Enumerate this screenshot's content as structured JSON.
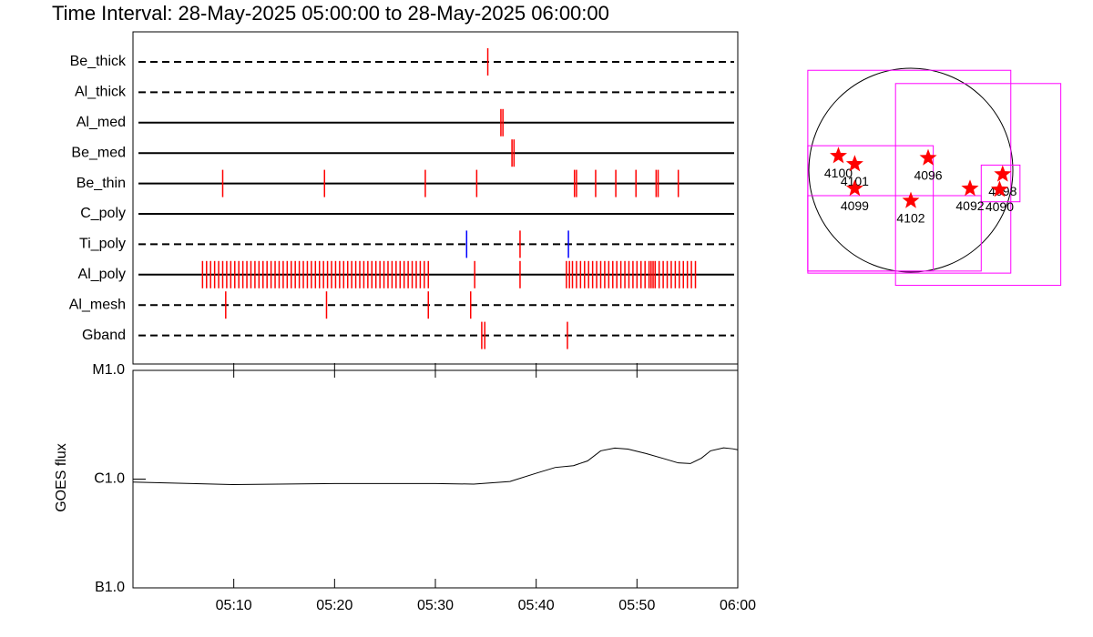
{
  "chart_data": [
    {
      "type": "event",
      "title": "Time Interval: 28-May-2025 05:00:00 to 28-May-2025 06:00:00",
      "xlim": [
        0,
        60
      ],
      "series": [
        {
          "name": "Be_thick",
          "line_style": "dashed",
          "color": "#ff0000",
          "values": [
            35.2
          ]
        },
        {
          "name": "Al_thick",
          "line_style": "dashed",
          "color": "#ff0000",
          "values": []
        },
        {
          "name": "Al_med",
          "line_style": "solid",
          "color": "#ff0000",
          "values": [
            36.5,
            36.7
          ]
        },
        {
          "name": "Be_med",
          "line_style": "solid",
          "color": "#ff0000",
          "values": [
            37.6,
            37.8
          ]
        },
        {
          "name": "Be_thin",
          "line_style": "solid",
          "color": "#ff0000",
          "values": [
            8.9,
            19.0,
            29.0,
            34.1,
            43.8,
            44.0,
            45.9,
            47.9,
            49.9,
            51.9,
            52.1,
            54.1
          ]
        },
        {
          "name": "C_poly",
          "line_style": "solid",
          "color": "#ff0000",
          "values": []
        },
        {
          "name": "Ti_poly",
          "line_style": "dashed",
          "color": "#ff0000",
          "colors": [
            "#0000ff",
            "#ff0000",
            "#0000ff"
          ],
          "values": [
            33.1,
            38.4,
            43.2
          ]
        },
        {
          "name": "Al_poly",
          "line_style": "solid",
          "color": "#ff0000",
          "values": [
            6.9,
            7.3,
            7.7,
            8.1,
            8.5,
            8.9,
            9.3,
            9.7,
            10.1,
            10.5,
            10.9,
            11.3,
            11.7,
            12.1,
            12.5,
            12.9,
            13.3,
            13.7,
            14.1,
            14.5,
            14.9,
            15.3,
            15.7,
            16.1,
            16.5,
            16.9,
            17.3,
            17.7,
            18.1,
            18.5,
            18.9,
            19.3,
            19.7,
            20.1,
            20.5,
            20.9,
            21.3,
            21.7,
            22.1,
            22.5,
            22.9,
            23.3,
            23.7,
            24.1,
            24.5,
            24.9,
            25.3,
            25.7,
            26.1,
            26.5,
            26.9,
            27.3,
            27.7,
            28.1,
            28.5,
            28.9,
            29.3,
            33.9,
            38.4,
            43.0,
            43.3,
            43.6,
            44.0,
            44.4,
            44.8,
            45.2,
            45.6,
            46.0,
            46.4,
            46.8,
            47.2,
            47.6,
            48.0,
            48.4,
            48.8,
            49.2,
            49.6,
            50.0,
            50.4,
            50.8,
            51.2,
            51.4,
            51.6,
            51.8,
            52.2,
            52.6,
            53.0,
            53.4,
            53.8,
            54.2,
            54.6,
            55.0,
            55.4,
            55.8
          ]
        },
        {
          "name": "Al_mesh",
          "line_style": "dashed",
          "color": "#ff0000",
          "values": [
            9.2,
            19.2,
            29.3,
            33.5
          ]
        },
        {
          "name": "Gband",
          "line_style": "dashed",
          "color": "#ff0000",
          "values": [
            34.6,
            34.9,
            43.1
          ]
        }
      ]
    },
    {
      "type": "line",
      "y_label": "GOES flux",
      "log_scale": true,
      "xlim": [
        0,
        60
      ],
      "xticks": [
        {
          "value": 10,
          "label": "05:10"
        },
        {
          "value": 20,
          "label": "05:20"
        },
        {
          "value": 30,
          "label": "05:30"
        },
        {
          "value": 40,
          "label": "05:40"
        },
        {
          "value": 50,
          "label": "05:50"
        },
        {
          "value": 60,
          "label": "06:00"
        }
      ],
      "ylim": [
        1e-07,
        1e-05
      ],
      "yticks": [
        {
          "value": 1e-07,
          "label": "B1.0"
        },
        {
          "value": 1e-06,
          "label": "C1.0"
        },
        {
          "value": 1e-05,
          "label": "M1.0"
        }
      ],
      "color": "#000000",
      "x": [
        0,
        10,
        20,
        30,
        33.8,
        37.4,
        40.1,
        41.9,
        43.7,
        45.1,
        46.4,
        47.8,
        49.1,
        50.9,
        52.8,
        54.1,
        55.3,
        56.4,
        57.3,
        58.6,
        59.5,
        60
      ],
      "values": [
        9.4e-07,
        8.9e-07,
        9.1e-07,
        9.1e-07,
        9e-07,
        9.5e-07,
        1.14e-06,
        1.28e-06,
        1.33e-06,
        1.47e-06,
        1.82e-06,
        1.93e-06,
        1.89e-06,
        1.72e-06,
        1.53e-06,
        1.41e-06,
        1.39e-06,
        1.56e-06,
        1.82e-06,
        1.94e-06,
        1.9e-06,
        1.86e-06
      ]
    },
    {
      "type": "map",
      "box_color": "#ff00ff",
      "point_color": "#ff0000",
      "boxes": [
        [
          -1.01,
          -1.01,
          0.98,
          0.98
        ],
        [
          -0.15,
          -1.13,
          1.47,
          0.85
        ],
        [
          0.69,
          -0.31,
          1.07,
          0.05
        ],
        [
          -1.01,
          -0.99,
          0.22,
          0.24
        ],
        [
          -1.01,
          -0.99,
          0.69,
          -0.25
        ]
      ],
      "categories": [
        "4100",
        "4101",
        "4099",
        "4096",
        "4102",
        "4092",
        "4098",
        "4090"
      ],
      "x": [
        -0.71,
        -0.55,
        -0.55,
        0.17,
        0.0,
        0.58,
        0.9,
        0.87
      ],
      "values": [
        0.14,
        0.06,
        -0.18,
        0.12,
        -0.3,
        -0.18,
        -0.04,
        -0.19
      ]
    }
  ]
}
